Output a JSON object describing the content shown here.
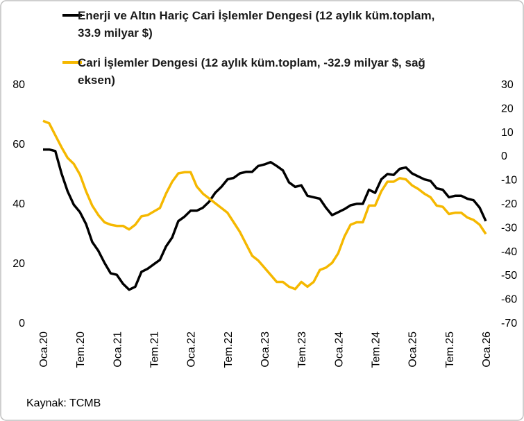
{
  "chart_data": {
    "type": "line",
    "source": "Kaynak: TCMB",
    "categories": [
      "Oca.20",
      null,
      null,
      null,
      null,
      null,
      "Tem.20",
      null,
      null,
      null,
      null,
      null,
      "Oca.21",
      null,
      null,
      null,
      null,
      null,
      "Tem.21",
      null,
      null,
      null,
      null,
      null,
      "Oca.22",
      null,
      null,
      null,
      null,
      null,
      "Tem.22",
      null,
      null,
      null,
      null,
      null,
      "Oca.23",
      null,
      null,
      null,
      null,
      null,
      "Tem.23",
      null,
      null,
      null,
      null,
      null,
      "Oca.24",
      null,
      null,
      null,
      null,
      null,
      "Tem.24",
      null,
      null,
      null,
      null,
      null,
      "Oca.25",
      null,
      null,
      null,
      null,
      null,
      "Tem.25",
      null,
      null,
      null,
      null,
      null,
      "Oca.26"
    ],
    "series": [
      {
        "name": "Enerji ve Altın Hariç Cari İşlemler Dengesi (12 aylık küm.toplam, 33.9 milyar $)",
        "color": "#000000",
        "values": [
          58,
          58,
          57.5,
          50,
          44,
          39.5,
          37,
          33,
          27,
          24,
          20,
          16.5,
          16,
          13,
          11,
          12,
          17,
          18,
          19.5,
          21,
          25.5,
          28.5,
          34,
          35.5,
          37.5,
          37.5,
          38.5,
          40.5,
          43.5,
          45.5,
          48,
          48.5,
          50,
          50.5,
          50.5,
          52.5,
          53,
          53.8,
          52.5,
          51,
          47,
          45.5,
          46,
          42.5,
          42,
          41.5,
          38.5,
          36,
          37,
          38,
          39.3,
          39.8,
          39.8,
          44.5,
          43.5,
          48,
          49.8,
          49.5,
          51.5,
          52,
          50,
          49,
          48,
          47.5,
          45,
          44.5,
          42,
          42.5,
          42.5,
          41.5,
          41,
          38.5,
          34
        ]
      },
      {
        "name": "Cari İşlemler Dengesi (12 aylık küm.toplam, -32.9 milyar $, sağ eksen)",
        "color": "#f5b800",
        "axis": "y2",
        "values": [
          14.5,
          13.5,
          8.5,
          3.5,
          -1,
          -3.5,
          -8,
          -15,
          -21,
          -25,
          -28,
          -29,
          -29.5,
          -29.5,
          -31,
          -29,
          -25.5,
          -25,
          -23.5,
          -22,
          -16,
          -11,
          -7.5,
          -7,
          -7,
          -13,
          -16,
          -18,
          -20,
          -22,
          -24,
          -28,
          -32,
          -37,
          -42,
          -44,
          -47,
          -50,
          -53,
          -53,
          -55,
          -56,
          -53,
          -55,
          -53,
          -48,
          -47,
          -45,
          -41,
          -34,
          -29,
          -28,
          -28,
          -21,
          -21,
          -15,
          -11,
          -11,
          -9.5,
          -10,
          -12.5,
          -14,
          -16,
          -17.5,
          -21,
          -21.5,
          -24.5,
          -24,
          -24,
          -26,
          -27,
          -29,
          -32.9
        ]
      }
    ],
    "ylim": [
      0,
      80
    ],
    "yticks": [
      0,
      20,
      40,
      60,
      80
    ],
    "y2lim": [
      -70,
      30
    ],
    "y2ticks": [
      -70,
      -60,
      -50,
      -40,
      -30,
      -20,
      -10,
      0,
      10,
      20,
      30
    ],
    "grid": false
  }
}
